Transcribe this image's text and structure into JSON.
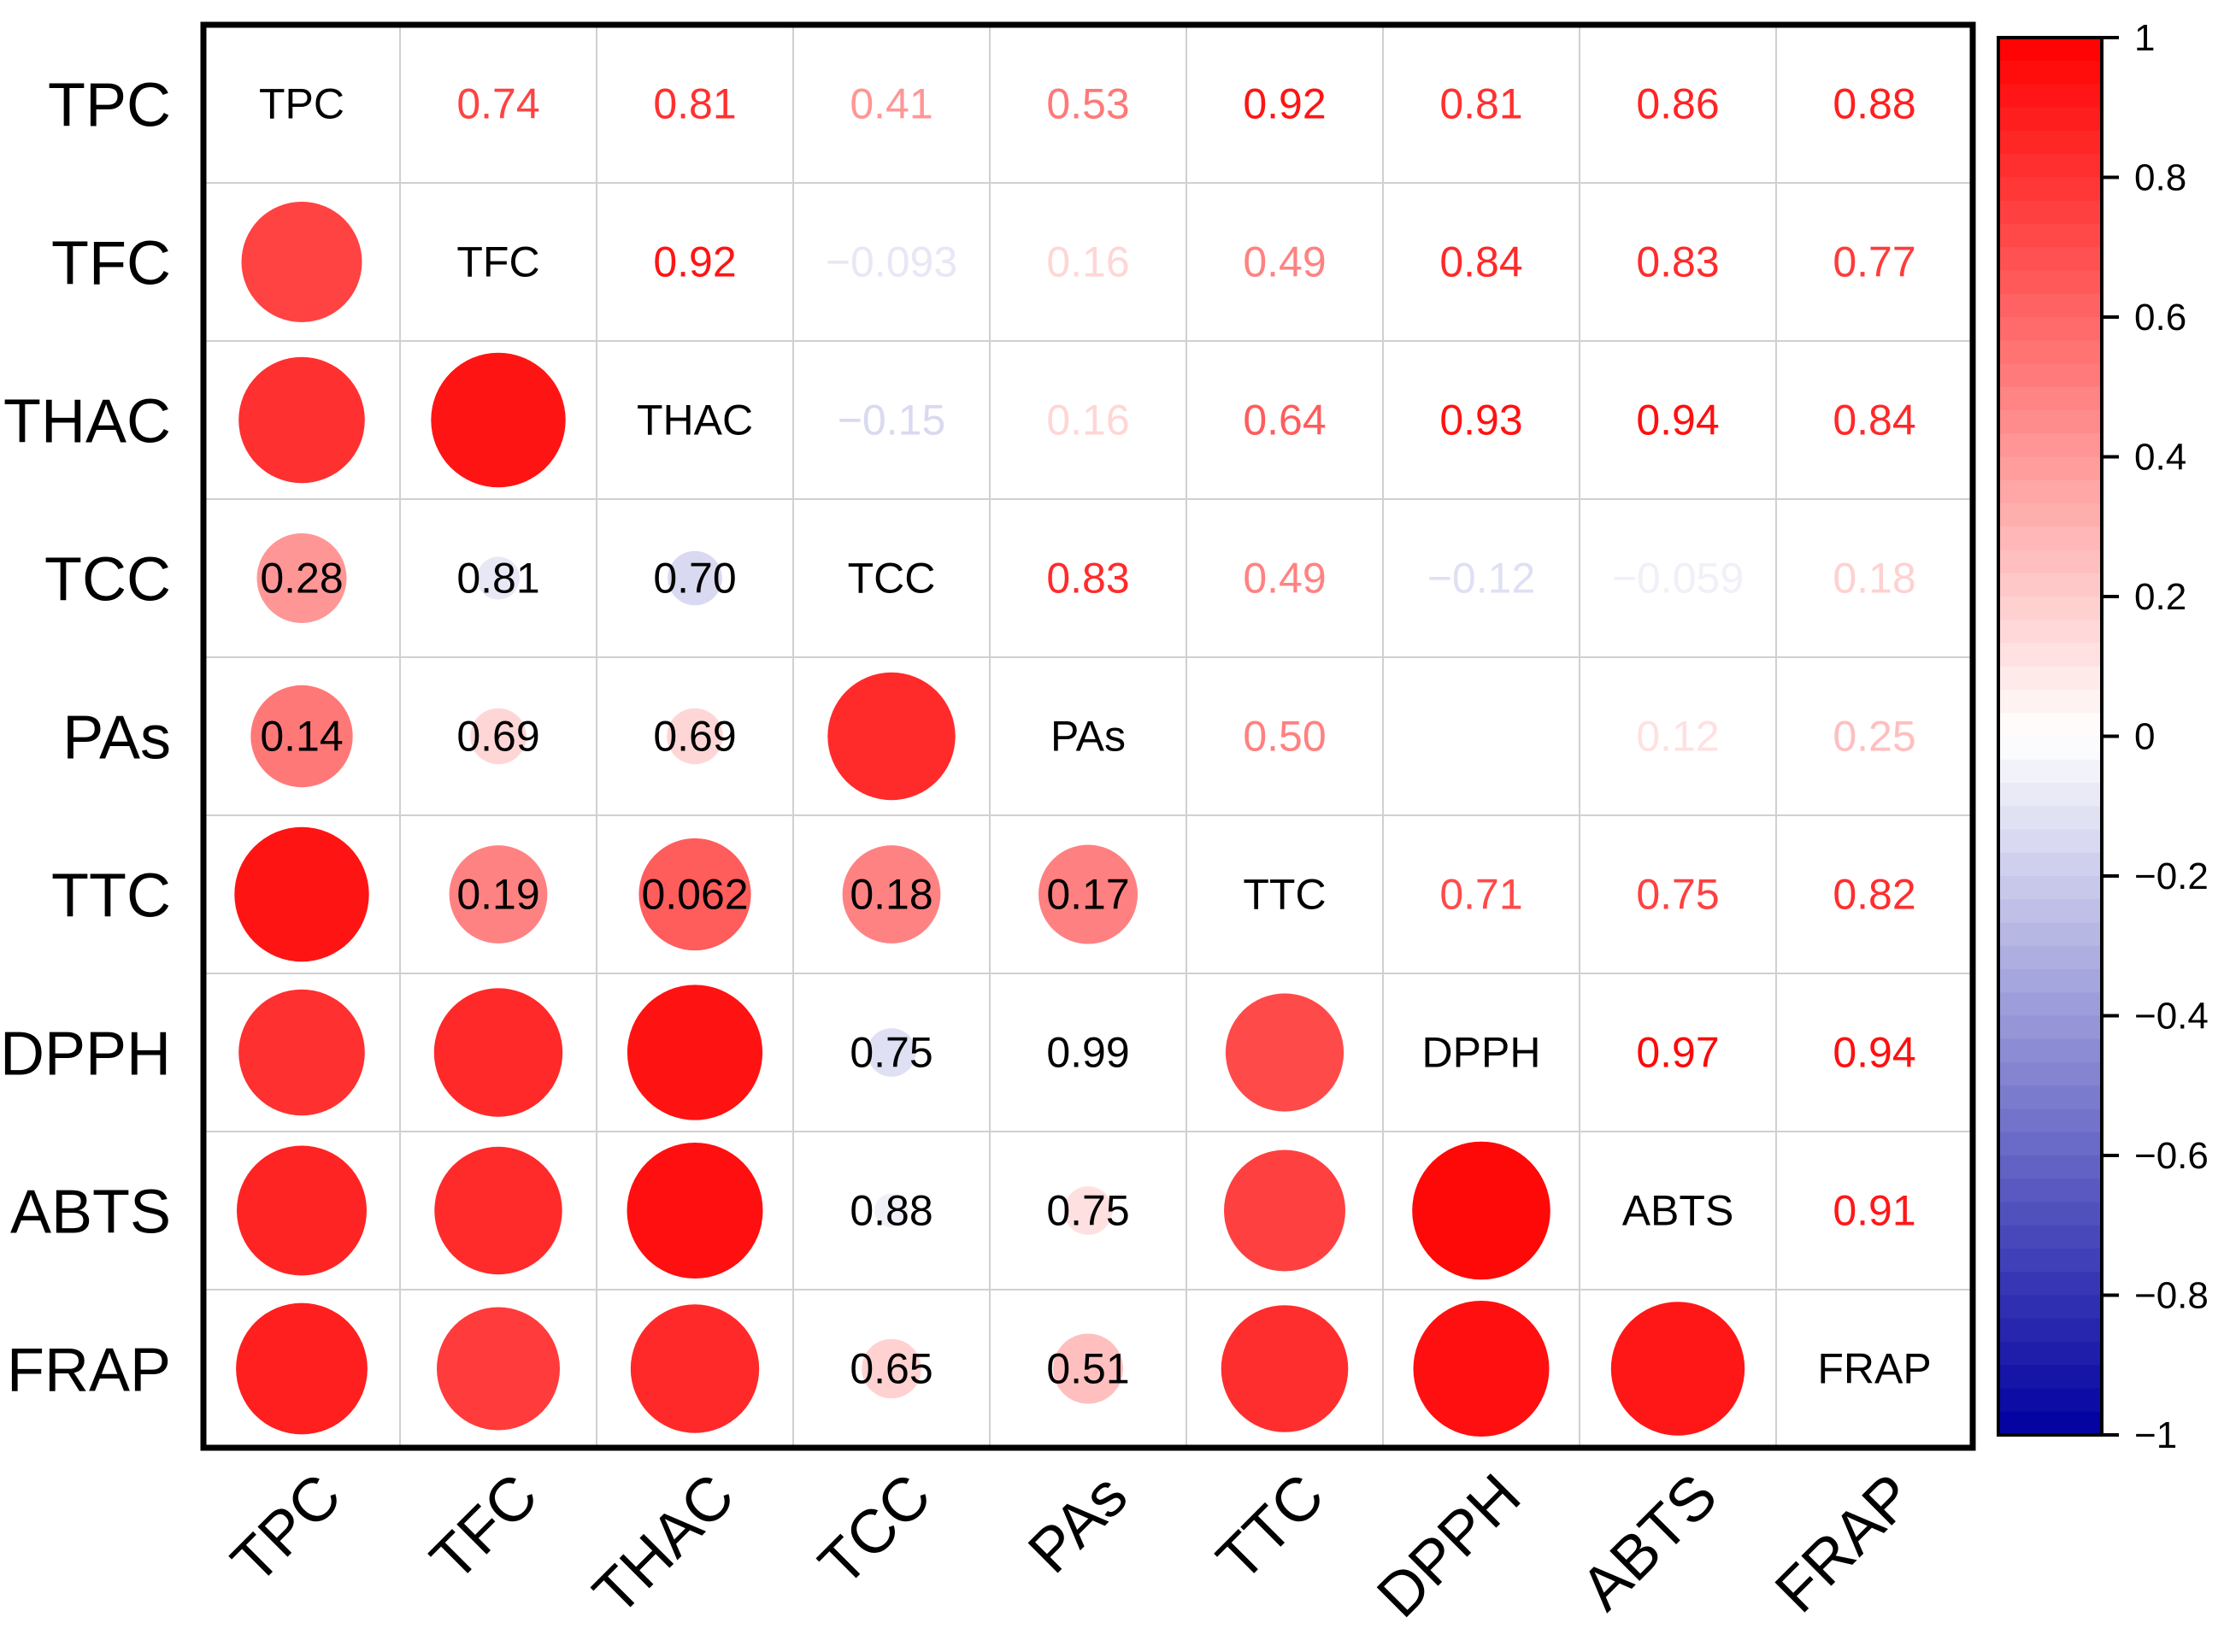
{
  "chart_data": {
    "type": "heatmap",
    "subtype": "correlogram",
    "title": "",
    "variables": [
      "TPC",
      "TFC",
      "THAC",
      "TCC",
      "PAs",
      "TTC",
      "DPPH",
      "ABTS",
      "FRAP"
    ],
    "upper_triangle": [
      [
        "",
        "0.74",
        "0.81",
        "0.41",
        "0.53",
        "0.92",
        "0.81",
        "0.86",
        "0.88"
      ],
      [
        "",
        "",
        "0.92",
        "−0.093",
        "0.16",
        "0.49",
        "0.84",
        "0.83",
        "0.77"
      ],
      [
        "",
        "",
        "",
        "−0.15",
        "0.16",
        "0.64",
        "0.93",
        "0.94",
        "0.84"
      ],
      [
        "",
        "",
        "",
        "",
        "0.83",
        "0.49",
        "−0.12",
        "−0.059",
        "0.18"
      ],
      [
        "",
        "",
        "",
        "",
        "",
        "0.50",
        "",
        "0.12",
        "0.25"
      ],
      [
        "",
        "",
        "",
        "",
        "",
        "",
        "0.71",
        "0.75",
        "0.82"
      ],
      [
        "",
        "",
        "",
        "",
        "",
        "",
        "",
        "0.97",
        "0.94"
      ],
      [
        "",
        "",
        "",
        "",
        "",
        "",
        "",
        "",
        "0.91"
      ],
      [
        "",
        "",
        "",
        "",
        "",
        "",
        "",
        "",
        ""
      ]
    ],
    "lower_triangle_pvalues": [
      [
        "",
        "",
        "",
        "",
        "",
        "",
        "",
        "",
        ""
      ],
      [
        "",
        "",
        "",
        "",
        "",
        "",
        "",
        "",
        ""
      ],
      [
        "",
        "",
        "",
        "",
        "",
        "",
        "",
        "",
        ""
      ],
      [
        "0.28",
        "0.81",
        "0.70",
        "",
        "",
        "",
        "",
        "",
        ""
      ],
      [
        "0.14",
        "0.69",
        "0.69",
        "",
        "",
        "",
        "",
        "",
        ""
      ],
      [
        "",
        "0.19",
        "0.062",
        "0.18",
        "0.17",
        "",
        "",
        "",
        ""
      ],
      [
        "",
        "",
        "",
        "0.75",
        "0.99",
        "",
        "",
        "",
        ""
      ],
      [
        "",
        "",
        "",
        "0.88",
        "0.75",
        "",
        "",
        "",
        ""
      ],
      [
        "",
        "",
        "",
        "0.65",
        "0.51",
        "",
        "",
        "",
        ""
      ]
    ],
    "circle_values": [
      [
        null,
        null,
        null,
        null,
        null,
        null,
        null,
        null,
        null
      ],
      [
        0.74,
        null,
        null,
        null,
        null,
        null,
        null,
        null,
        null
      ],
      [
        0.81,
        0.92,
        null,
        null,
        null,
        null,
        null,
        null,
        null
      ],
      [
        0.41,
        -0.093,
        -0.15,
        null,
        null,
        null,
        null,
        null,
        null
      ],
      [
        0.53,
        0.16,
        0.16,
        0.83,
        null,
        null,
        null,
        null,
        null
      ],
      [
        0.92,
        0.49,
        0.64,
        0.49,
        0.5,
        null,
        null,
        null,
        null
      ],
      [
        0.81,
        0.84,
        0.93,
        -0.12,
        0.0,
        0.71,
        null,
        null,
        null
      ],
      [
        0.86,
        0.83,
        0.94,
        -0.059,
        0.12,
        0.75,
        0.97,
        null,
        null
      ],
      [
        0.88,
        0.77,
        0.84,
        0.18,
        0.25,
        0.82,
        0.94,
        0.91,
        null
      ]
    ],
    "colorbar": {
      "range": [
        -1,
        1
      ],
      "ticks": [
        "1",
        "0.8",
        "0.6",
        "0.4",
        "0.2",
        "0",
        "−0.2",
        "−0.4",
        "−0.6",
        "−0.8",
        "−1"
      ],
      "tick_values": [
        1,
        0.8,
        0.6,
        0.4,
        0.2,
        0,
        -0.2,
        -0.4,
        -0.6,
        -0.8,
        -1
      ],
      "colors": {
        "negative": "#0000a0",
        "zero": "#ffffff",
        "positive": "#ff0000"
      }
    },
    "legend": "right"
  }
}
